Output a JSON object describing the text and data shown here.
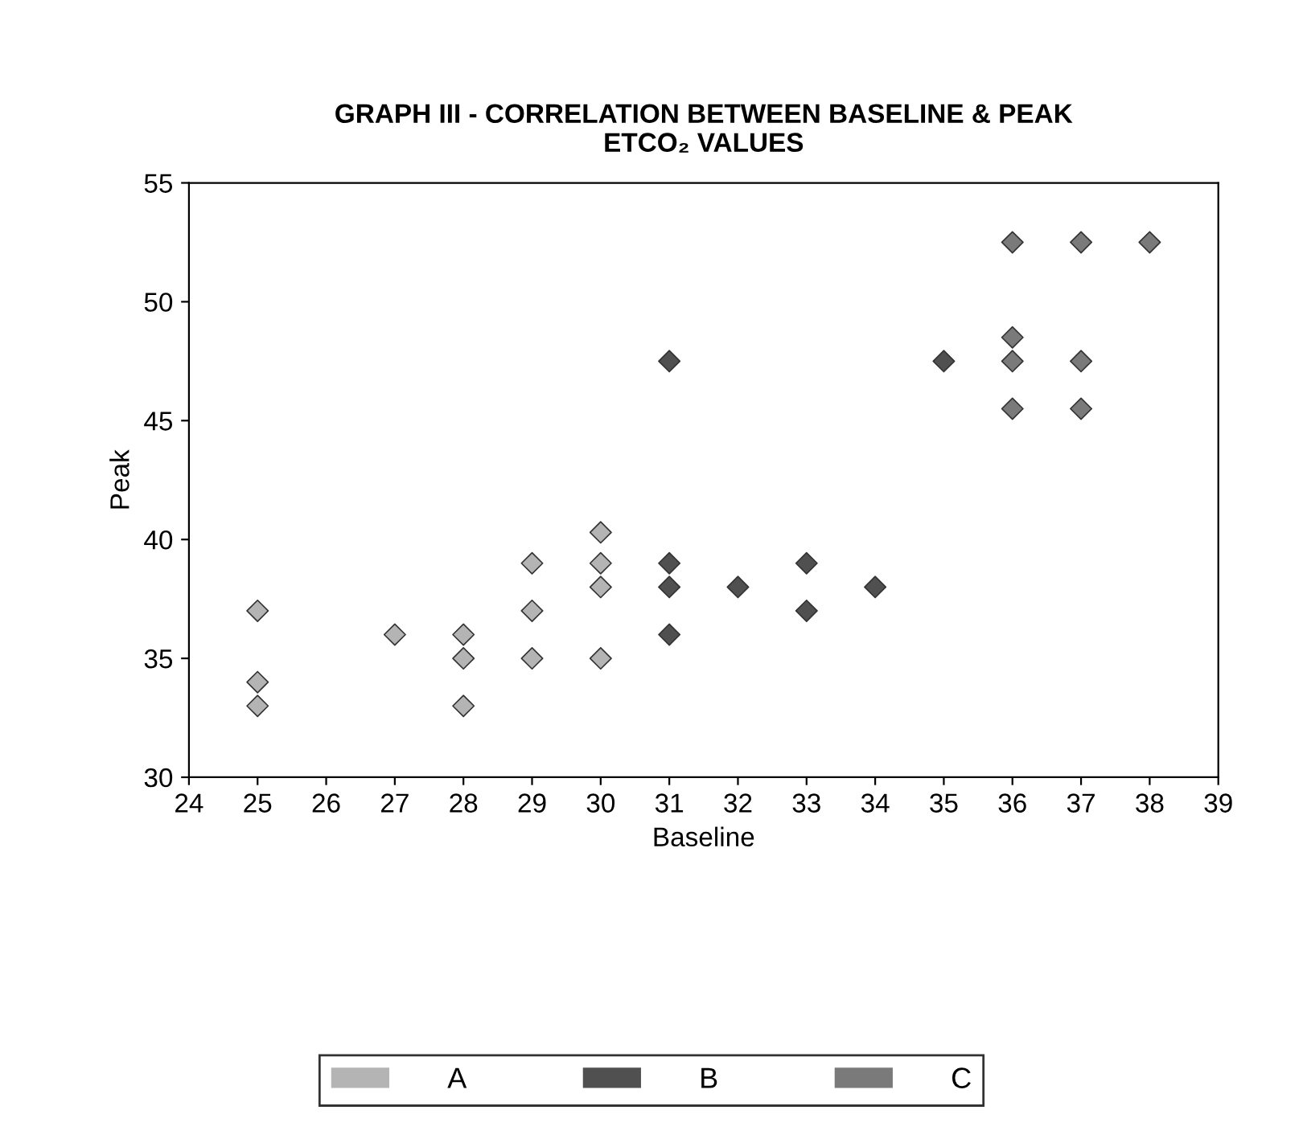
{
  "chart_data": {
    "type": "scatter",
    "title": "GRAPH III - CORRELATION BETWEEN BASELINE & PEAK\nETCO₂ VALUES",
    "xlabel": "Baseline",
    "ylabel": "Peak",
    "xlim": [
      24,
      39
    ],
    "xticks": [
      24,
      25,
      26,
      27,
      28,
      29,
      30,
      31,
      32,
      33,
      34,
      35,
      36,
      37,
      38,
      39
    ],
    "ylim": [
      30,
      55
    ],
    "yticks": [
      30,
      35,
      40,
      45,
      50,
      55
    ],
    "grid": false,
    "legend": "bottom",
    "marker": "diamond",
    "series": [
      {
        "name": "A",
        "color": "#b4b4b4",
        "x": [
          25,
          25,
          25,
          27,
          28,
          28,
          28,
          29,
          29,
          29,
          30,
          30,
          30,
          30
        ],
        "values": [
          37,
          34,
          33,
          36,
          36,
          35,
          33,
          39,
          37,
          35,
          40.3,
          39,
          38,
          35
        ]
      },
      {
        "name": "B",
        "color": "#505050",
        "x": [
          31,
          31,
          31,
          31,
          32,
          33,
          33,
          34,
          35
        ],
        "values": [
          47.5,
          39,
          38,
          36,
          38,
          39,
          37,
          38,
          47.5
        ]
      },
      {
        "name": "C",
        "color": "#7a7a7a",
        "x": [
          36,
          36,
          36,
          36,
          37,
          37,
          37,
          38
        ],
        "values": [
          52.5,
          48.5,
          47.5,
          45.5,
          52.5,
          47.5,
          45.5,
          52.5
        ]
      }
    ]
  }
}
